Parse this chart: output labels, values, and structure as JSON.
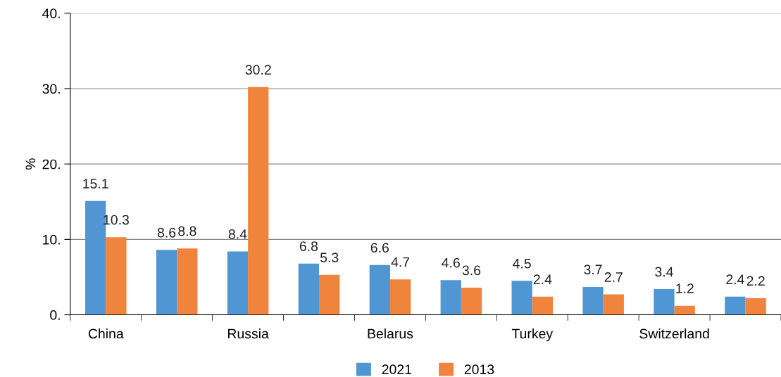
{
  "chart_data": {
    "type": "bar",
    "ylabel": "%",
    "categories": [
      "China",
      null,
      "Russia",
      null,
      "Belarus",
      null,
      "Turkey",
      null,
      "Switzerland",
      null
    ],
    "series": [
      {
        "name": "2021",
        "color": "#5096d2",
        "values": [
          15.1,
          8.6,
          8.4,
          6.8,
          6.6,
          4.6,
          4.5,
          3.7,
          3.4,
          2.4
        ]
      },
      {
        "name": "2013",
        "color": "#f0843c",
        "values": [
          10.3,
          8.8,
          30.2,
          5.3,
          4.7,
          3.6,
          2.4,
          2.7,
          1.2,
          2.2
        ]
      }
    ],
    "ylim": [
      0,
      40
    ],
    "yticks": [
      {
        "value": 0,
        "label": "0."
      },
      {
        "value": 10,
        "label": "10."
      },
      {
        "value": 20,
        "label": "20."
      },
      {
        "value": 30,
        "label": "30."
      },
      {
        "value": 40,
        "label": "40."
      }
    ],
    "grid": "y",
    "legend": "bottom",
    "data_labels": true
  }
}
